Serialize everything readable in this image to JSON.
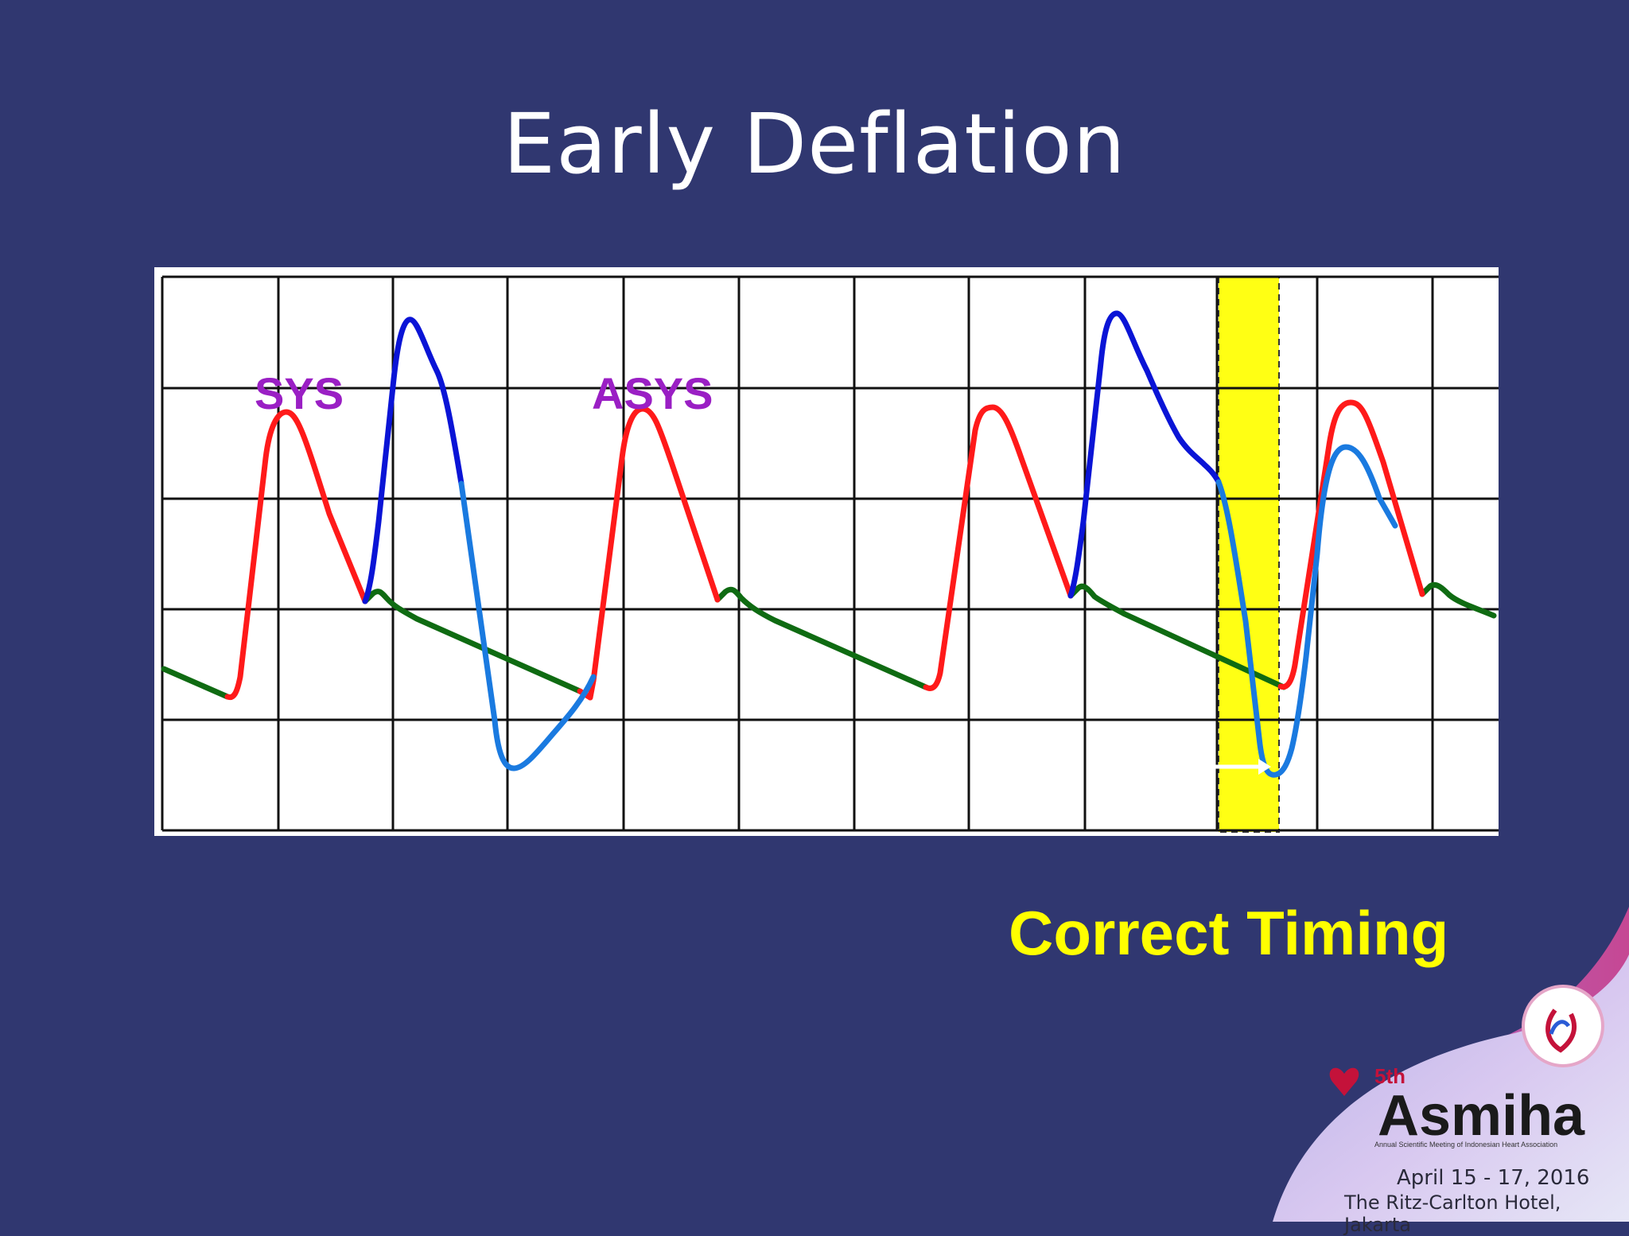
{
  "slide": {
    "title": "Early Deflation",
    "caption": "Correct Timing"
  },
  "waveform": {
    "labels": {
      "sys": "SYS",
      "asys": "ASYS"
    },
    "colors": {
      "background": "#303770",
      "systole": "#ff1a1a",
      "augmentation": "#0a14d6",
      "deflation": "#1a7ae0",
      "diastole": "#0f6b12",
      "highlight": "#ffff14",
      "label": "#9a1fc4",
      "caption": "#ffff00"
    }
  },
  "branding": {
    "ordinal": "5th",
    "name": "Asmiha",
    "tagline": "Annual Scientific Meeting of Indonesian Heart Association",
    "dates": "April 15 - 17, 2016",
    "venue": "The Ritz-Carlton Hotel, Jakarta"
  }
}
